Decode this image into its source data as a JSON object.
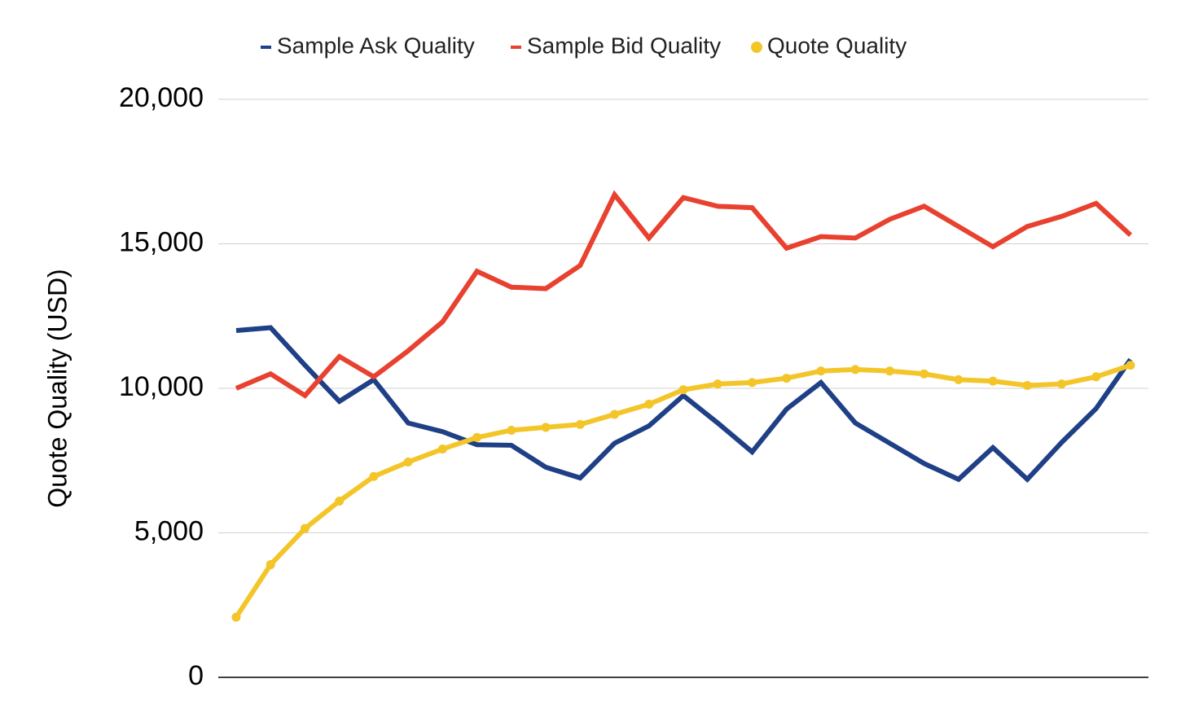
{
  "chart_data": {
    "type": "line",
    "title": "",
    "xlabel": "",
    "ylabel": "Quote Quality (USD)",
    "ylim": [
      0,
      20000
    ],
    "yticks": [
      "0",
      "5,000",
      "10,000",
      "15,000",
      "20,000"
    ],
    "grid": true,
    "legend": "top",
    "series": [
      {
        "name": "Sample Ask Quality",
        "color": "#1f3f86",
        "marker": "dash",
        "values": [
          12000,
          12100,
          10800,
          9550,
          10300,
          8800,
          8500,
          8050,
          8030,
          7270,
          6900,
          8100,
          8700,
          9750,
          8800,
          7800,
          9280,
          10200,
          8800,
          8100,
          7400,
          6850,
          7950,
          6850,
          8130,
          9300,
          11000
        ]
      },
      {
        "name": "Sample Bid Quality",
        "color": "#e8412f",
        "marker": "dash",
        "values": [
          10000,
          10500,
          9750,
          11100,
          10400,
          11300,
          12300,
          14050,
          13500,
          13450,
          14250,
          16700,
          15200,
          16600,
          16300,
          16250,
          14850,
          15250,
          15200,
          15850,
          16300,
          15600,
          14900,
          15600,
          15950,
          16400,
          15300
        ]
      },
      {
        "name": "Quote Quality",
        "color": "#f3c528",
        "marker": "dot",
        "values": [
          2080,
          3900,
          5150,
          6100,
          6950,
          7450,
          7900,
          8300,
          8550,
          8650,
          8750,
          9100,
          9450,
          9950,
          10150,
          10200,
          10350,
          10600,
          10650,
          10600,
          10500,
          10300,
          10250,
          10100,
          10150,
          10400,
          10800
        ]
      }
    ]
  }
}
